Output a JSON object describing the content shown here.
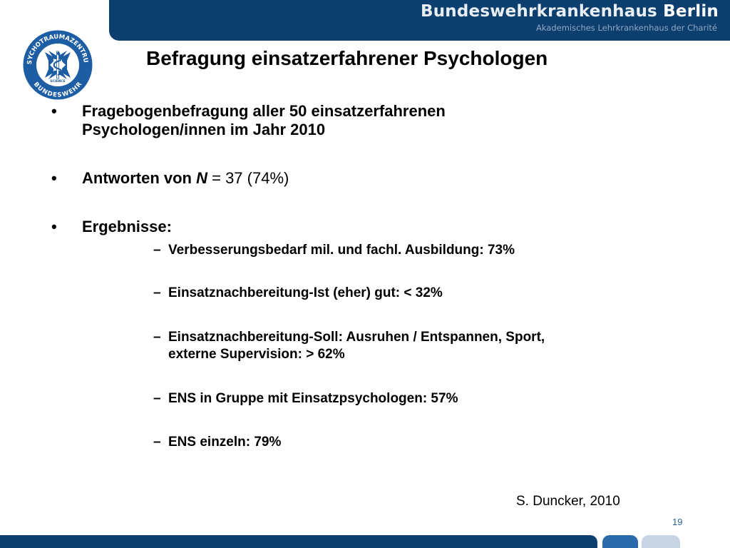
{
  "header": {
    "institution": "Bundeswehrkrankenhaus",
    "city": "Berlin",
    "subtitle": "Akademisches Lehrkrankenhaus der Charité"
  },
  "logo": {
    "top_text": "PSYCHOTRAUMAZENTRUM",
    "bottom_text": "BUNDESWEHR",
    "center_text": "SCIENCE",
    "icon": "psychotrauma-emblem"
  },
  "slide": {
    "title": "Befragung einsatzerfahrener Psychologen",
    "bullet_symbol": "•",
    "dash_symbol": "–",
    "bullets": [
      {
        "lines": [
          "Fragebogenbefragung aller 50 einsatzerfahrenen",
          "Psychologen/innen im Jahr 2010"
        ]
      },
      {
        "prefix": "Antworten von ",
        "italic": "N",
        "suffix": " = 37 (74%)"
      },
      {
        "text": "Ergebnisse:"
      }
    ],
    "results": [
      {
        "lines": [
          "Verbesserungsbedarf mil. und fachl. Ausbildung: 73%"
        ]
      },
      {
        "lines": [
          "Einsatznachbereitung-Ist (eher) gut: < 32%"
        ]
      },
      {
        "lines": [
          "Einsatznachbereitung-Soll: Ausruhen / Entspannen, Sport,",
          "externe Supervision: > 62%"
        ]
      },
      {
        "lines": [
          "ENS in Gruppe mit Einsatzpsychologen: 57%"
        ]
      },
      {
        "lines": [
          "ENS einzeln: 79%"
        ]
      }
    ],
    "source": "S. Duncker, 2010",
    "page_number": "19"
  },
  "colors": {
    "navy": "#0c3f6e",
    "blue": "#2b6aab",
    "light_blue": "#c8d3e3"
  }
}
